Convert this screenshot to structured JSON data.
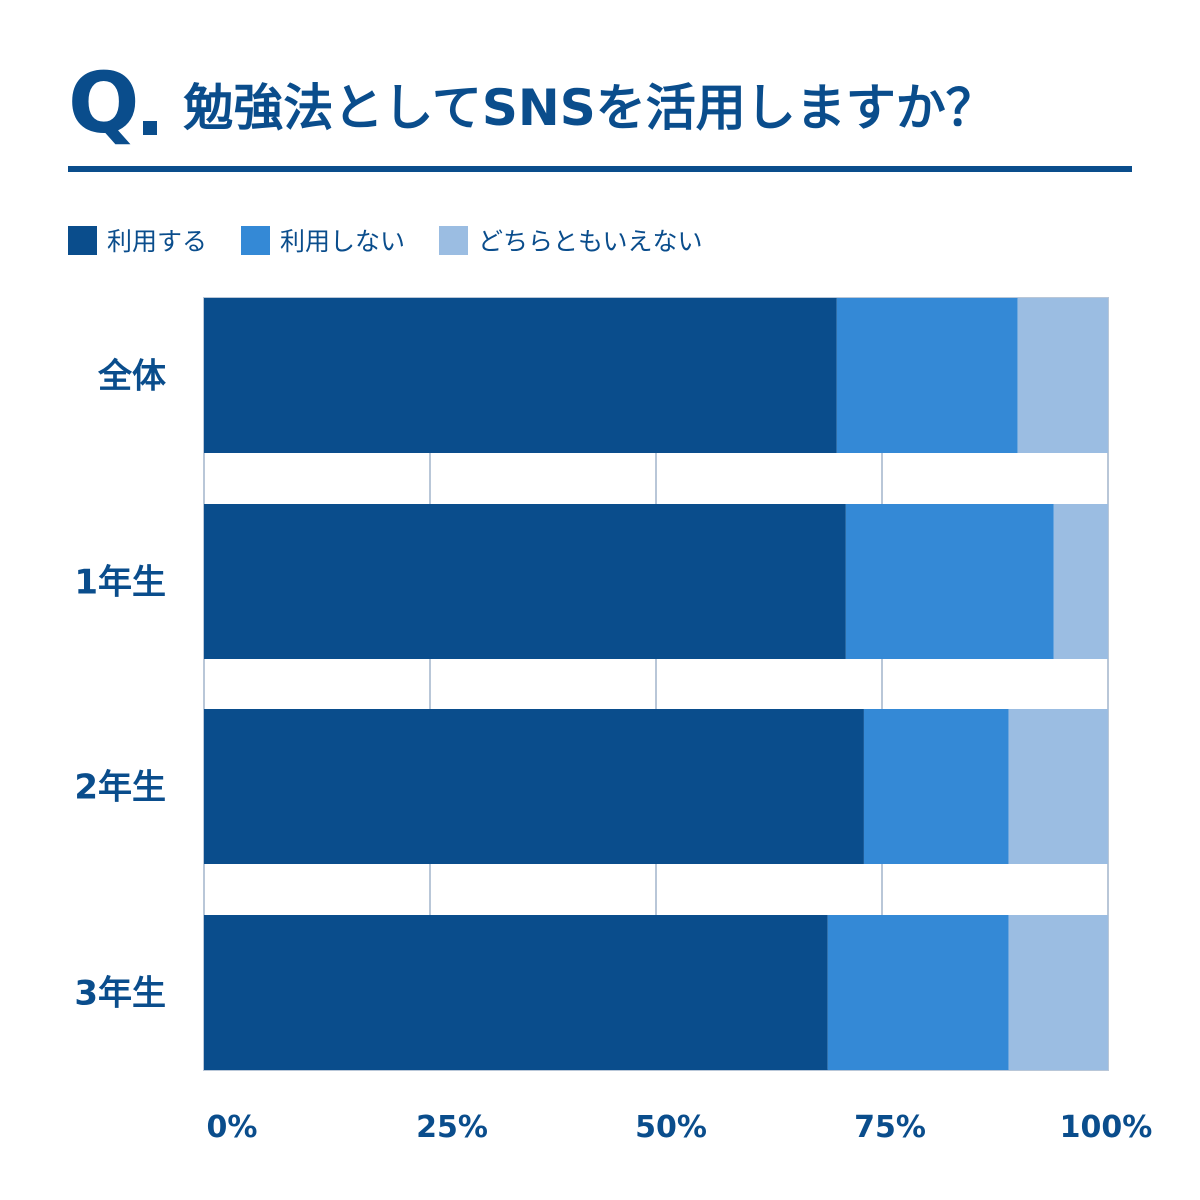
{
  "header": {
    "q_mark": "Q",
    "title": "勉強法としてSNSを活用しますか？"
  },
  "colors": {
    "brand": "#0a4d8c",
    "grid": "#b9c7d8"
  },
  "chart_data": {
    "type": "bar",
    "orientation": "horizontal",
    "stacked": true,
    "title": "勉強法としてSNSを活用しますか？",
    "categories": [
      "全体",
      "1年生",
      "2年生",
      "3年生"
    ],
    "series": [
      {
        "name": "利用する",
        "color": "#0a4d8c",
        "values": [
          70,
          71,
          73,
          69
        ]
      },
      {
        "name": "利用しない",
        "color": "#3489d6",
        "values": [
          20,
          23,
          16,
          20
        ]
      },
      {
        "name": "どちらともいえない",
        "color": "#9bbde2",
        "values": [
          10,
          6,
          11,
          11
        ]
      }
    ],
    "xlim": [
      0,
      100
    ],
    "x_ticks": [
      "0%",
      "25%",
      "50%",
      "75%",
      "100%"
    ],
    "grid": true,
    "legend_position": "top-left"
  }
}
